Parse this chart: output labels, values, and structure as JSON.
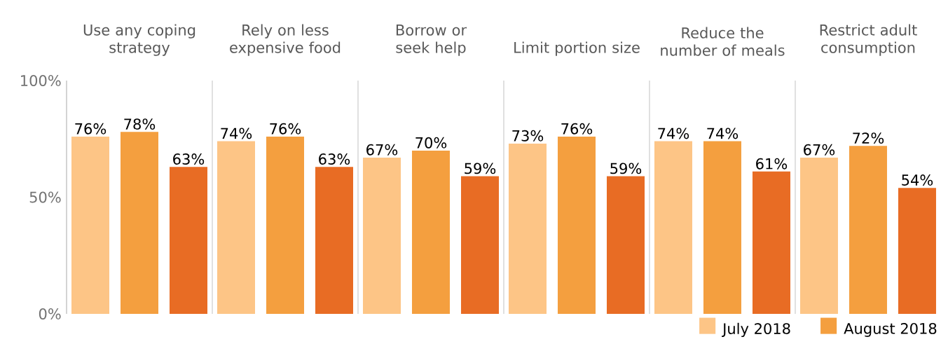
{
  "chart_data": {
    "type": "bar",
    "categories": [
      "Use any coping strategy",
      "Rely on less expensive food",
      "Borrow or seek help",
      "Limit portion size",
      "Reduce the number of meals",
      "Restrict adult consumption"
    ],
    "series": [
      {
        "name": "July 2018",
        "color": "#fdc586",
        "values": [
          76,
          74,
          67,
          73,
          74,
          67
        ],
        "value_labels": [
          "76%",
          "74%",
          "67%",
          "73%",
          "74%",
          "67%"
        ]
      },
      {
        "name": "August 2018",
        "color": "#f49f3f",
        "values": [
          78,
          76,
          70,
          76,
          74,
          72
        ],
        "value_labels": [
          "78%",
          "76%",
          "70%",
          "76%",
          "74%",
          "72%"
        ]
      },
      {
        "color": "#e86c24",
        "values": [
          63,
          63,
          59,
          59,
          61,
          54
        ],
        "value_labels": [
          "63%",
          "63%",
          "59%",
          "59%",
          "61%",
          "54%"
        ]
      }
    ],
    "ylim": [
      0,
      100
    ],
    "yticks": [
      {
        "value": 0,
        "label": "0%"
      },
      {
        "value": 50,
        "label": "50%"
      },
      {
        "value": 100,
        "label": "100%"
      }
    ],
    "grid": "x",
    "legend": "bottom right"
  }
}
